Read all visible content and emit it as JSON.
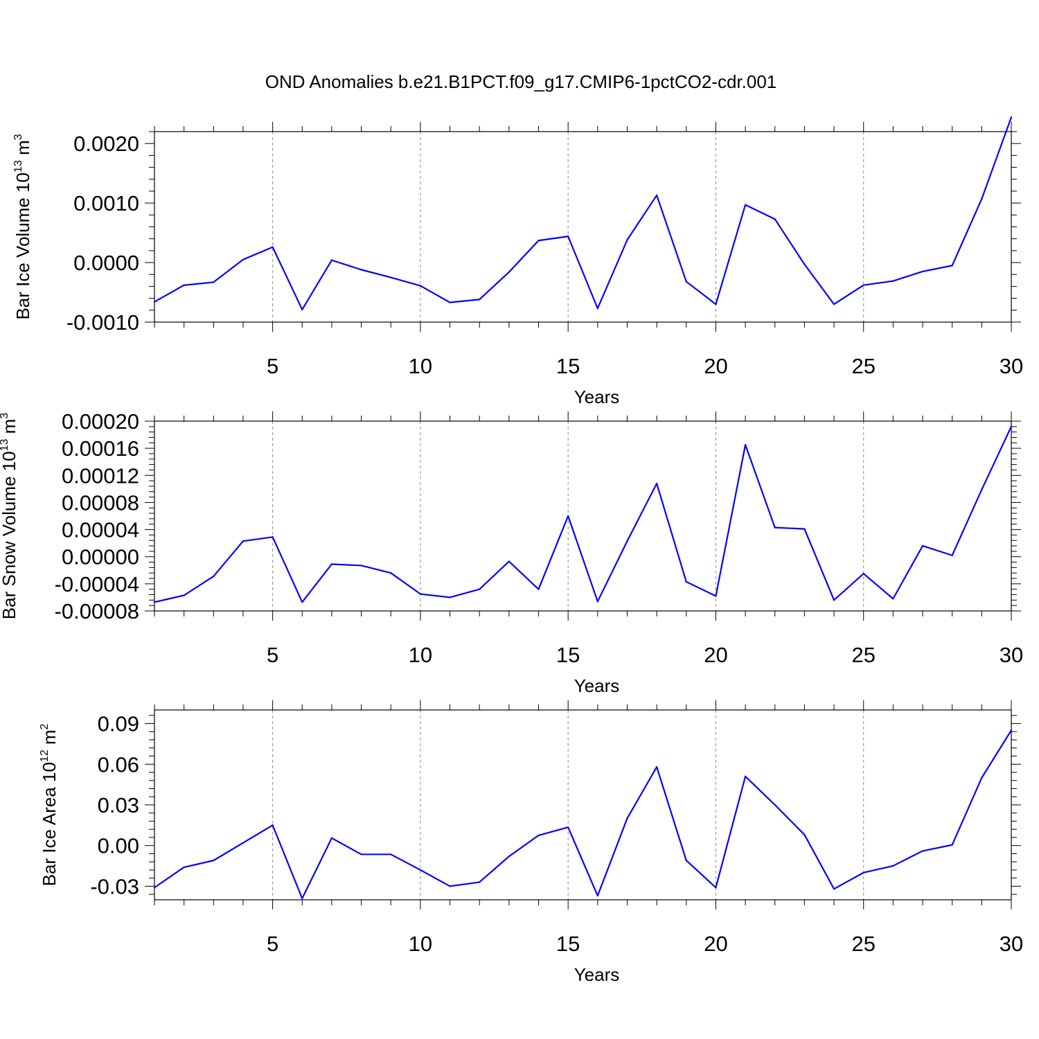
{
  "title": "OND Anomalies b.e21.B1PCT.f09_g17.CMIP6-1pctCO2-cdr.001",
  "line_color": "#0000ff",
  "grid_color": "#888888",
  "chart_data": [
    {
      "type": "line",
      "title": "OND Anomalies b.e21.B1PCT.f09_g17.CMIP6-1pctCO2-cdr.001",
      "xlabel": "Years",
      "ylabel_main": "Bar Ice Volume 10",
      "ylabel_exp": "13",
      "ylabel_unit": " m",
      "ylabel_unit_exp": "3",
      "xlim": [
        1,
        30
      ],
      "ylim": [
        -0.001,
        0.0022
      ],
      "xticks": [
        5,
        10,
        15,
        20,
        25,
        30
      ],
      "xtick_labels": [
        "5",
        "10",
        "15",
        "20",
        "25",
        "30"
      ],
      "yticks": [
        -0.001,
        0.0,
        0.001,
        0.002
      ],
      "ytick_labels": [
        "-0.0010",
        "0.0000",
        "0.0010",
        "0.0020"
      ],
      "grid_x": [
        5,
        10,
        15,
        20,
        25
      ],
      "x": [
        1,
        2,
        3,
        4,
        5,
        6,
        7,
        8,
        9,
        10,
        11,
        12,
        13,
        14,
        15,
        16,
        17,
        18,
        19,
        20,
        21,
        22,
        23,
        24,
        25,
        26,
        27,
        28,
        29,
        30
      ],
      "series": [
        {
          "name": "Bar Ice Volume",
          "values": [
            -0.00066,
            -0.00038,
            -0.00033,
            5e-05,
            0.00026,
            -0.00079,
            4e-05,
            -0.00012,
            -0.00025,
            -0.00039,
            -0.00067,
            -0.00062,
            -0.00016,
            0.00037,
            0.00044,
            -0.00077,
            0.00038,
            0.00113,
            -0.00032,
            -0.0007,
            0.00097,
            0.00073,
            -3e-05,
            -0.0007,
            -0.00038,
            -0.00031,
            -0.00015,
            -5e-05,
            0.00107,
            0.00244
          ]
        }
      ]
    },
    {
      "type": "line",
      "xlabel": "Years",
      "ylabel_main": "Bar Snow Volume 10",
      "ylabel_exp": "13",
      "ylabel_unit": " m",
      "ylabel_unit_exp": "3",
      "xlim": [
        1,
        30
      ],
      "ylim": [
        -8e-05,
        0.0002
      ],
      "xticks": [
        5,
        10,
        15,
        20,
        25,
        30
      ],
      "xtick_labels": [
        "5",
        "10",
        "15",
        "20",
        "25",
        "30"
      ],
      "yticks": [
        -8e-05,
        -4e-05,
        0.0,
        4e-05,
        8e-05,
        0.00012,
        0.00016,
        0.0002
      ],
      "ytick_labels": [
        "-0.00008",
        "-0.00004",
        "0.00000",
        "0.00004",
        "0.00008",
        "0.00012",
        "0.00016",
        "0.00020"
      ],
      "grid_x": [
        5,
        10,
        15,
        20,
        25
      ],
      "x": [
        1,
        2,
        3,
        4,
        5,
        6,
        7,
        8,
        9,
        10,
        11,
        12,
        13,
        14,
        15,
        16,
        17,
        18,
        19,
        20,
        21,
        22,
        23,
        24,
        25,
        26,
        27,
        28,
        29,
        30
      ],
      "series": [
        {
          "name": "Bar Snow Volume",
          "values": [
            -6.7e-05,
            -5.7e-05,
            -2.9e-05,
            2.3e-05,
            2.9e-05,
            -6.7e-05,
            -1.1e-05,
            -1.3e-05,
            -2.4e-05,
            -5.5e-05,
            -6e-05,
            -4.8e-05,
            -7e-06,
            -4.8e-05,
            6e-05,
            -6.6e-05,
            2.3e-05,
            0.000108,
            -3.7e-05,
            -5.8e-05,
            0.000165,
            4.3e-05,
            4.1e-05,
            -6.4e-05,
            -2.5e-05,
            -6.2e-05,
            1.6e-05,
            2e-06,
            9.9e-05,
            0.000192
          ]
        }
      ]
    },
    {
      "type": "line",
      "xlabel": "Years",
      "ylabel_main": "Bar Ice Area 10",
      "ylabel_exp": "12",
      "ylabel_unit": " m",
      "ylabel_unit_exp": "2",
      "xlim": [
        1,
        30
      ],
      "ylim": [
        -0.04,
        0.1
      ],
      "xticks": [
        5,
        10,
        15,
        20,
        25,
        30
      ],
      "xtick_labels": [
        "5",
        "10",
        "15",
        "20",
        "25",
        "30"
      ],
      "yticks": [
        -0.03,
        0.0,
        0.03,
        0.06,
        0.09
      ],
      "ytick_labels": [
        "-0.03",
        "0.00",
        "0.03",
        "0.06",
        "0.09"
      ],
      "grid_x": [
        5,
        10,
        15,
        20,
        25
      ],
      "x": [
        1,
        2,
        3,
        4,
        5,
        6,
        7,
        8,
        9,
        10,
        11,
        12,
        13,
        14,
        15,
        16,
        17,
        18,
        19,
        20,
        21,
        22,
        23,
        24,
        25,
        26,
        27,
        28,
        29,
        30
      ],
      "series": [
        {
          "name": "Bar Ice Area",
          "values": [
            -0.031,
            -0.016,
            -0.011,
            0.002,
            0.015,
            -0.039,
            0.0055,
            -0.0065,
            -0.0065,
            -0.018,
            -0.03,
            -0.027,
            -0.008,
            0.0075,
            0.0135,
            -0.037,
            0.02,
            0.058,
            -0.011,
            -0.031,
            0.051,
            0.03,
            0.008,
            -0.032,
            -0.02,
            -0.015,
            -0.004,
            0.0005,
            0.05,
            0.085
          ]
        }
      ]
    }
  ]
}
